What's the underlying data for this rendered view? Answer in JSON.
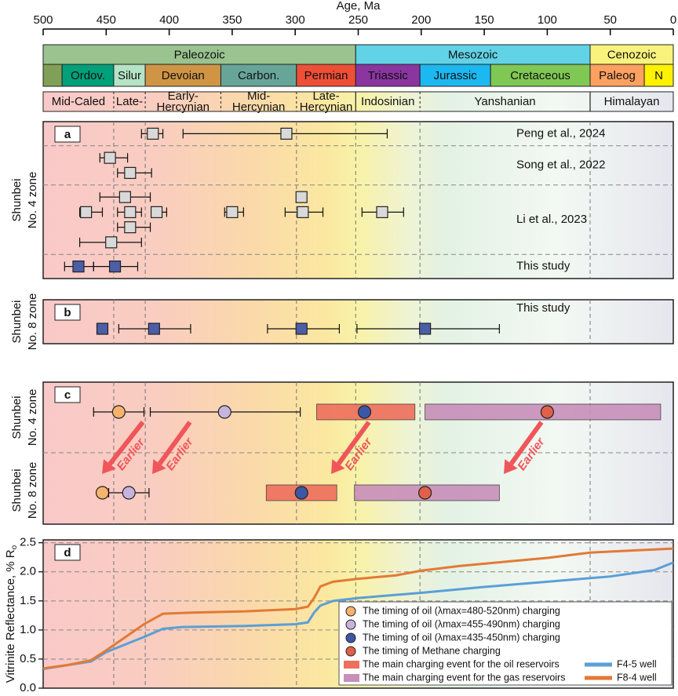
{
  "chart_data": [
    {
      "type": "timescale",
      "xlabel": "Age, Ma",
      "xlim": [
        500,
        0
      ],
      "xticks": [
        500,
        450,
        400,
        350,
        300,
        250,
        200,
        150,
        100,
        50,
        0
      ],
      "eras": [
        {
          "name": "Paleozoic",
          "end": 252,
          "color": "#9ac38f"
        },
        {
          "name": "Mesozoic",
          "end": 66,
          "color": "#62d3e6"
        },
        {
          "name": "Cenozoic",
          "end": 0,
          "color": "#f9f27c"
        }
      ],
      "periods": [
        {
          "name": null,
          "end": 485,
          "color": "#7fa056"
        },
        {
          "name": "Ordov.",
          "end": 444,
          "color": "#00a07a"
        },
        {
          "name": "Silur",
          "end": 419,
          "color": "#b5e3c5"
        },
        {
          "name": "Devoian",
          "end": 359,
          "color": "#cf9545"
        },
        {
          "name": "Carbon.",
          "end": 299,
          "color": "#67a599"
        },
        {
          "name": "Permian",
          "end": 252,
          "color": "#ef4f36"
        },
        {
          "name": "Triassic",
          "end": 201,
          "color": "#8a35a0"
        },
        {
          "name": "Jurassic",
          "end": 145,
          "color": "#1cb8f0"
        },
        {
          "name": "Cretaceous",
          "end": 66,
          "color": "#80c854"
        },
        {
          "name": "Paleog",
          "end": 23,
          "color": "#fda060"
        },
        {
          "name": "N",
          "end": 0,
          "color": "#fff200"
        }
      ],
      "orogenies": [
        {
          "name": "Mid-Caled",
          "end": 444
        },
        {
          "name": "Late-",
          "end": 419
        },
        {
          "name": [
            "Early-",
            "Hercynian"
          ],
          "end": 359
        },
        {
          "name": [
            "Mid-",
            "Hercynian"
          ],
          "end": 299
        },
        {
          "name": [
            "Late-",
            "Hercynian"
          ],
          "end": 252
        },
        {
          "name": "Indosinian",
          "end": 201
        },
        {
          "name": "Yanshanian",
          "end": 66
        },
        {
          "name": "Himalayan",
          "end": 0
        }
      ],
      "guides": [
        444,
        419,
        299,
        252,
        201,
        66
      ]
    },
    {
      "type": "errorbar",
      "label": "a",
      "ylabel": [
        "Shunbei",
        "No. 4 zone"
      ],
      "groups": [
        {
          "name": "Peng et al., 2024",
          "color": "#d9d9d9",
          "rows": [
            {
              "values": [
                413,
                307
              ],
              "older": [
                422,
                389
              ],
              "younger": [
                405,
                227
              ]
            }
          ]
        },
        {
          "name": "Song et al., 2022",
          "color": "#d9d9d9",
          "rows": [
            {
              "values": [
                447
              ],
              "older": [
                455
              ],
              "younger": [
                433
              ]
            },
            {
              "values": [
                431
              ],
              "older": [
                441
              ],
              "younger": [
                414
              ]
            }
          ]
        },
        {
          "name": "Li et al., 2023",
          "color": "#d9d9d9",
          "rows": [
            {
              "values": [
                435,
                295
              ],
              "older": [
                455,
                null
              ],
              "younger": [
                415,
                null
              ]
            },
            {
              "values": [
                466,
                431,
                410,
                350,
                294,
                231
              ],
              "older": [
                471,
                441,
                414,
                356,
                308,
                247
              ],
              "younger": [
                453,
                422,
                402,
                341,
                278,
                214
              ]
            },
            {
              "values": [
                431
              ],
              "older": [
                441
              ],
              "younger": [
                415
              ]
            },
            {
              "values": [
                446
              ],
              "older": [
                471
              ],
              "younger": [
                422
              ]
            }
          ]
        },
        {
          "name": "This study",
          "color": "#4b5ea6",
          "rows": [
            {
              "values": [
                472,
                443
              ],
              "older": [
                483,
                460
              ],
              "younger": [
                460,
                425
              ]
            }
          ]
        }
      ]
    },
    {
      "type": "errorbar",
      "label": "b",
      "ylabel": [
        "Shunbei",
        "No. 8 zone"
      ],
      "groups": [
        {
          "name": "This study",
          "color": "#4b5ea6",
          "rows": [
            {
              "values": [
                453,
                412,
                295,
                197
              ],
              "older": [
                null,
                440,
                322,
                251
              ],
              "younger": [
                null,
                383,
                265,
                138
              ]
            }
          ]
        }
      ]
    },
    {
      "type": "charging",
      "label": "c",
      "zones": [
        [
          "Shunbei",
          "No. 4 zone"
        ],
        [
          "Shunbei",
          "No. 8 zone"
        ]
      ],
      "series": [
        {
          "name": "The timing of oil (λmax=480-520nm) charging",
          "color": "#f6b36c",
          "values": [
            440,
            453
          ],
          "older": [
            460,
            null
          ],
          "younger": [
            420,
            null
          ]
        },
        {
          "name": "The timing of oil (λmax=455-490nm) charging",
          "color": "#c7b3dc",
          "values": [
            356,
            432
          ],
          "older": [
            415,
            448
          ],
          "younger": [
            296,
            416
          ]
        },
        {
          "name": "The timing of oil (λmax=435-450nm) charging",
          "color": "#3d57a6",
          "values": [
            245,
            295
          ],
          "older": [
            null,
            null
          ],
          "younger": [
            null,
            null
          ]
        },
        {
          "name": "The timing of Methane charging",
          "color": "#e0604a",
          "values": [
            100,
            197
          ],
          "older": [
            null,
            null
          ],
          "younger": [
            null,
            null
          ]
        }
      ],
      "bands": [
        {
          "name": "The main charging event for the oil reservoirs",
          "color": "#ee6f5d",
          "older": [
            283,
            323
          ],
          "younger": [
            205,
            267
          ]
        },
        {
          "name": "The main charging event for the gas reservoirs",
          "color": "#c88fba",
          "older": [
            197,
            253
          ],
          "younger": [
            10,
            138
          ]
        }
      ],
      "arrow_labels": [
        "Earlier",
        "Earlier",
        "Earlier",
        "Earlier"
      ]
    },
    {
      "type": "line",
      "label": "d",
      "ylabel": "Vitrinite Reflectance, % R",
      "ylabel_sub": "o",
      "ylim": [
        0,
        2.55
      ],
      "yticks": [
        {
          "value": 0,
          "label": "0.0"
        },
        {
          "value": 0.5,
          "label": "0.5"
        },
        {
          "value": 1,
          "label": "1.0"
        },
        {
          "value": 1.5,
          "label": "1.5"
        },
        {
          "value": 2,
          "label": "2.0"
        },
        {
          "value": 2.5,
          "label": "2.5"
        }
      ],
      "series": [
        {
          "name": "F4-5 well",
          "color": "#5b9fd6",
          "x": [
            500,
            462,
            450,
            420,
            405,
            390,
            340,
            300,
            290,
            285,
            280,
            270,
            250,
            200,
            150,
            100,
            50,
            15,
            0
          ],
          "values": [
            0.33,
            0.46,
            0.62,
            0.88,
            1.02,
            1.05,
            1.07,
            1.1,
            1.13,
            1.3,
            1.42,
            1.5,
            1.55,
            1.64,
            1.74,
            1.83,
            1.92,
            2.03,
            2.16
          ]
        },
        {
          "name": "F8-4 well",
          "color": "#e27a36",
          "x": [
            500,
            480,
            462,
            450,
            440,
            430,
            420,
            410,
            405,
            380,
            340,
            300,
            290,
            285,
            280,
            270,
            250,
            220,
            200,
            170,
            130,
            100,
            66,
            30,
            0
          ],
          "values": [
            0.34,
            0.4,
            0.48,
            0.65,
            0.8,
            0.95,
            1.1,
            1.22,
            1.28,
            1.3,
            1.32,
            1.36,
            1.4,
            1.55,
            1.75,
            1.83,
            1.88,
            1.94,
            2.02,
            2.1,
            2.18,
            2.24,
            2.33,
            2.37,
            2.4
          ]
        }
      ]
    }
  ]
}
